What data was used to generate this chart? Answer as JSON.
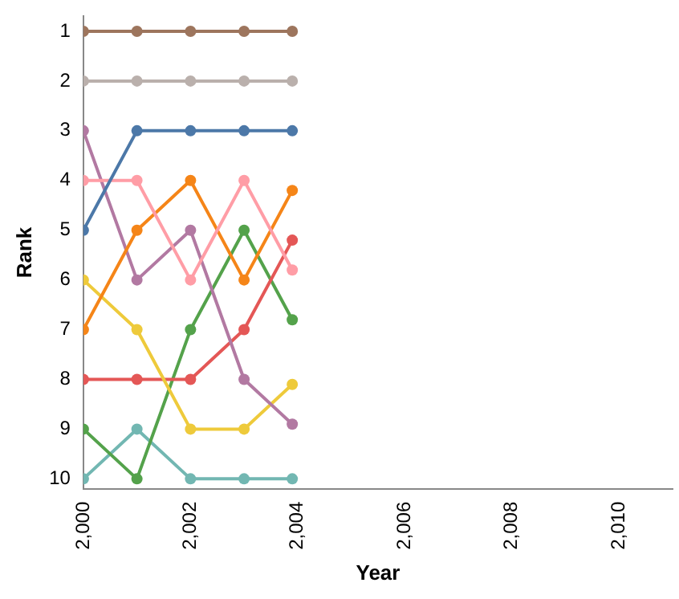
{
  "chart_data": {
    "type": "line",
    "xlabel": "Year",
    "ylabel": "Rank",
    "x": [
      2000,
      2001,
      2002,
      2003,
      2003.9
    ],
    "xlim": [
      2000,
      2011
    ],
    "xticks": [
      {
        "value": 2000,
        "label": "2,000"
      },
      {
        "value": 2002,
        "label": "2,002"
      },
      {
        "value": 2004,
        "label": "2,004"
      },
      {
        "value": 2006,
        "label": "2,006"
      },
      {
        "value": 2008,
        "label": "2,008"
      },
      {
        "value": 2010,
        "label": "2,010"
      }
    ],
    "ylim": [
      10.2,
      0.7
    ],
    "yticks": [
      1,
      2,
      3,
      4,
      5,
      6,
      7,
      8,
      9,
      10
    ],
    "grid": false,
    "legend": false,
    "marker": "circle",
    "line_style": "solid",
    "series": [
      {
        "color": "#9d755d",
        "values": [
          1,
          1,
          1,
          1,
          1
        ]
      },
      {
        "color": "#bab0ac",
        "values": [
          2,
          2,
          2,
          2,
          2
        ]
      },
      {
        "color": "#4c78a8",
        "values": [
          5,
          3,
          3,
          3,
          3
        ]
      },
      {
        "color": "#ff9da6",
        "values": [
          4,
          4,
          6,
          4,
          5.8
        ]
      },
      {
        "color": "#f58518",
        "values": [
          7,
          5,
          4,
          6,
          4.2
        ]
      },
      {
        "color": "#b279a2",
        "values": [
          3,
          6,
          5,
          8,
          8.9
        ]
      },
      {
        "color": "#eeca3b",
        "values": [
          6,
          7,
          9,
          9,
          8.1
        ]
      },
      {
        "color": "#e45756",
        "values": [
          8,
          8,
          8,
          7,
          5.2
        ]
      },
      {
        "color": "#54a24b",
        "values": [
          9,
          10,
          7,
          5,
          6.8
        ]
      },
      {
        "color": "#72b7b2",
        "values": [
          10,
          9,
          10,
          10,
          10
        ]
      }
    ]
  }
}
